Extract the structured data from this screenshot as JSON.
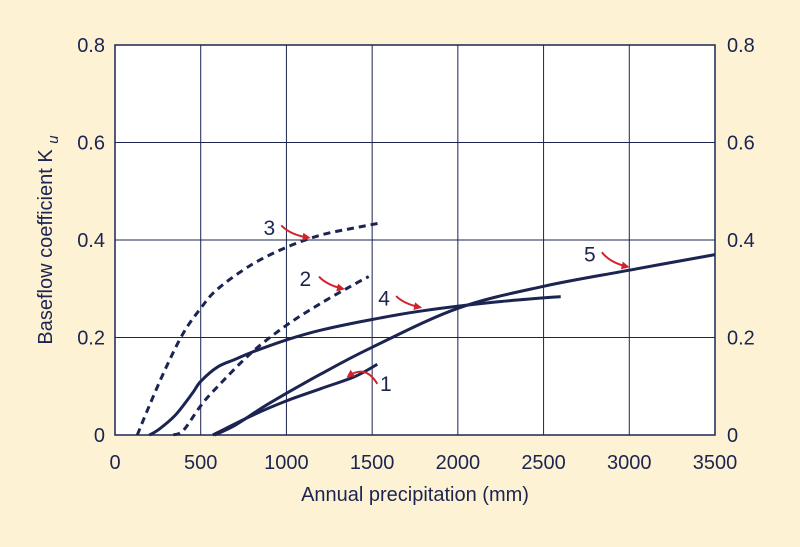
{
  "chart_data": {
    "type": "line",
    "xlabel": "Annual precipitation (mm)",
    "ylabel_main": "Baseflow coefficient K",
    "ylabel_sub": "u",
    "xlim": [
      0,
      3500
    ],
    "ylim": [
      0,
      0.8
    ],
    "x_ticks": [
      0,
      500,
      1000,
      1500,
      2000,
      2500,
      3000,
      3500
    ],
    "x_tick_labels": [
      "0",
      "500",
      "1000",
      "1500",
      "2000",
      "2500",
      "3000",
      "3500"
    ],
    "y_ticks": [
      0,
      0.2,
      0.4,
      0.6,
      0.8
    ],
    "y_tick_labels": [
      "0",
      "0.2",
      "0.4",
      "0.6",
      "0.8"
    ],
    "grid": true,
    "right_axis_labels": true,
    "colors": {
      "line": "#1c2451",
      "arrow": "#d2232a",
      "plot_bg": "#ffffff",
      "page_bg": "#fdf3d4"
    },
    "series": [
      {
        "label": "1",
        "style": "solid",
        "x": [
          570,
          800,
          1000,
          1200,
          1400,
          1530
        ],
        "y": [
          0,
          0.04,
          0.07,
          0.095,
          0.12,
          0.145
        ]
      },
      {
        "label": "2",
        "style": "dashed",
        "x": [
          340,
          400,
          500,
          600,
          800,
          1000,
          1200,
          1400,
          1480
        ],
        "y": [
          0,
          0.01,
          0.06,
          0.1,
          0.17,
          0.225,
          0.27,
          0.31,
          0.325
        ]
      },
      {
        "label": "3",
        "style": "dashed",
        "x": [
          130,
          200,
          300,
          400,
          500,
          600,
          800,
          1000,
          1200,
          1400,
          1550
        ],
        "y": [
          0,
          0.06,
          0.14,
          0.21,
          0.26,
          0.3,
          0.35,
          0.385,
          0.41,
          0.425,
          0.435
        ]
      },
      {
        "label": "4",
        "style": "solid",
        "x": [
          200,
          250,
          350,
          450,
          500,
          600,
          700,
          800,
          1000,
          1200,
          1500,
          1800,
          2200,
          2600
        ],
        "y": [
          0,
          0.01,
          0.04,
          0.085,
          0.11,
          0.14,
          0.155,
          0.17,
          0.195,
          0.215,
          0.237,
          0.255,
          0.272,
          0.284
        ]
      },
      {
        "label": "5",
        "style": "solid",
        "x": [
          580,
          700,
          900,
          1200,
          1500,
          2000,
          2500,
          3000,
          3500
        ],
        "y": [
          0,
          0.02,
          0.065,
          0.125,
          0.18,
          0.26,
          0.305,
          0.338,
          0.37
        ]
      }
    ],
    "annotations": [
      {
        "label": "1",
        "text_x": 1580,
        "text_y": 0.105,
        "arrow_from": [
          1530,
          0.105
        ],
        "arrow_to": [
          1360,
          0.12
        ]
      },
      {
        "label": "2",
        "text_x": 1110,
        "text_y": 0.32,
        "arrow_from": [
          1190,
          0.325
        ],
        "arrow_to": [
          1330,
          0.3
        ]
      },
      {
        "label": "3",
        "text_x": 900,
        "text_y": 0.425,
        "arrow_from": [
          970,
          0.43
        ],
        "arrow_to": [
          1130,
          0.405
        ]
      },
      {
        "label": "4",
        "text_x": 1570,
        "text_y": 0.28,
        "arrow_from": [
          1640,
          0.285
        ],
        "arrow_to": [
          1780,
          0.262
        ]
      },
      {
        "label": "5",
        "text_x": 2770,
        "text_y": 0.37,
        "arrow_from": [
          2840,
          0.375
        ],
        "arrow_to": [
          2990,
          0.345
        ]
      }
    ]
  }
}
